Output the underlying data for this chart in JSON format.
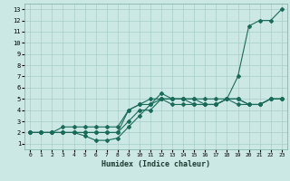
{
  "title": "",
  "xlabel": "Humidex (Indice chaleur)",
  "ylabel": "",
  "xlim": [
    -0.5,
    23.5
  ],
  "ylim": [
    0.5,
    13.5
  ],
  "xticks": [
    0,
    1,
    2,
    3,
    4,
    5,
    6,
    7,
    8,
    9,
    10,
    11,
    12,
    13,
    14,
    15,
    16,
    17,
    18,
    19,
    20,
    21,
    22,
    23
  ],
  "yticks": [
    1,
    2,
    3,
    4,
    5,
    6,
    7,
    8,
    9,
    10,
    11,
    12,
    13
  ],
  "bg_color": "#cce8e4",
  "grid_color": "#a8cdc9",
  "line_color": "#1a6b5a",
  "line1_x": [
    0,
    1,
    2,
    3,
    4,
    5,
    6,
    7,
    8,
    9,
    10,
    11,
    12,
    13,
    14,
    15,
    16,
    17,
    18,
    19,
    20,
    21,
    22,
    23
  ],
  "line1_y": [
    2,
    2,
    2,
    2,
    2,
    2,
    2,
    2,
    2,
    3,
    4,
    4,
    5,
    5,
    5,
    5,
    5,
    5,
    5,
    7,
    11.5,
    12,
    12,
    13
  ],
  "line2_x": [
    0,
    1,
    2,
    3,
    4,
    5,
    6,
    7,
    8,
    9,
    10,
    11,
    12,
    13,
    14,
    15,
    16,
    17,
    18,
    19,
    20,
    21,
    22,
    23
  ],
  "line2_y": [
    2,
    2,
    2,
    2,
    2,
    1.7,
    1.3,
    1.3,
    1.5,
    2.5,
    3.5,
    4.5,
    5.5,
    5,
    5,
    4.5,
    4.5,
    4.5,
    5,
    5,
    4.5,
    4.5,
    5,
    5
  ],
  "line3_x": [
    0,
    1,
    2,
    3,
    4,
    5,
    6,
    7,
    8,
    9,
    10,
    11,
    12,
    13,
    14,
    15,
    16,
    17,
    18,
    19,
    20,
    21,
    22,
    23
  ],
  "line3_y": [
    2,
    2,
    2,
    2.5,
    2.5,
    2.5,
    2.5,
    2.5,
    2.5,
    4,
    4.5,
    4.5,
    5,
    5,
    5,
    5,
    4.5,
    4.5,
    5,
    5,
    4.5,
    4.5,
    5,
    5
  ],
  "line4_x": [
    0,
    1,
    2,
    3,
    4,
    5,
    6,
    7,
    8,
    9,
    10,
    11,
    12,
    13,
    14,
    15,
    16,
    17,
    18,
    19,
    20,
    21,
    22,
    23
  ],
  "line4_y": [
    2,
    2,
    2,
    2,
    2,
    2,
    2,
    2,
    2,
    4,
    4.5,
    5,
    5,
    4.5,
    4.5,
    4.5,
    4.5,
    4.5,
    5,
    4.5,
    4.5,
    4.5,
    5,
    5
  ]
}
